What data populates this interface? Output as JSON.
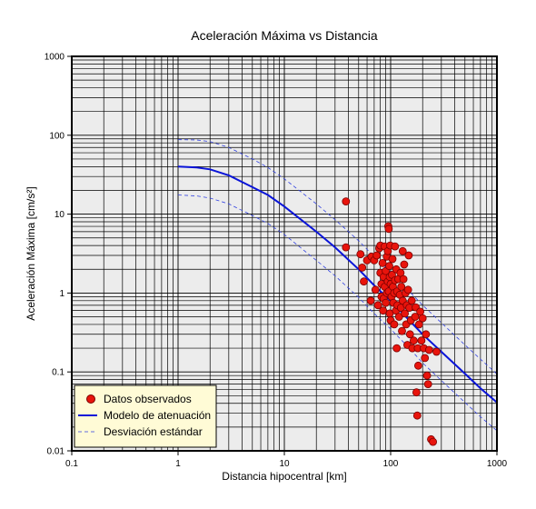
{
  "chart_data": {
    "type": "scatter",
    "title": "Aceleración Máxima vs Distancia",
    "xlabel": "Distancia hipocentral [km]",
    "ylabel": "Aceleración Máxima [cm/s²]",
    "xscale": "log",
    "yscale": "log",
    "xlim": [
      0.1,
      1000
    ],
    "ylim": [
      0.01,
      1000
    ],
    "x_tick_labels": [
      "0.1",
      "1",
      "10",
      "100",
      "1000"
    ],
    "y_tick_labels": [
      "0.01",
      "0.1",
      "1",
      "10",
      "100",
      "1000"
    ],
    "grid": true,
    "legend_position": "bottom-left",
    "colors": {
      "plot_background": "#ececec",
      "grid": "#000000",
      "observed_fill": "#e8140c",
      "observed_edge": "#7a0000",
      "model": "#0a14d8",
      "deviation": "#3040e0",
      "legend_background": "#fffbd6"
    },
    "series": [
      {
        "name": "Datos observados",
        "kind": "scatter",
        "points": [
          [
            38,
            14.5
          ],
          [
            38,
            3.8
          ],
          [
            52,
            3.1
          ],
          [
            54,
            2.1
          ],
          [
            56,
            1.4
          ],
          [
            60,
            2.6
          ],
          [
            65,
            0.8
          ],
          [
            66,
            2.9
          ],
          [
            70,
            2.6
          ],
          [
            72,
            1.1
          ],
          [
            74,
            3.0
          ],
          [
            76,
            0.7
          ],
          [
            78,
            3.7
          ],
          [
            80,
            4.0
          ],
          [
            80,
            1.8
          ],
          [
            82,
            1.3
          ],
          [
            82,
            0.9
          ],
          [
            84,
            2.4
          ],
          [
            85,
            0.6
          ],
          [
            86,
            1.6
          ],
          [
            86,
            0.85
          ],
          [
            88,
            3.9
          ],
          [
            88,
            1.2
          ],
          [
            90,
            1.9
          ],
          [
            90,
            0.75
          ],
          [
            92,
            1.0
          ],
          [
            92,
            2.9
          ],
          [
            94,
            3.4
          ],
          [
            94,
            1.4
          ],
          [
            95,
            7.0
          ],
          [
            96,
            6.5
          ],
          [
            96,
            1.05
          ],
          [
            97,
            2.2
          ],
          [
            98,
            0.55
          ],
          [
            98,
            1.6
          ],
          [
            99,
            4.0
          ],
          [
            100,
            1.3
          ],
          [
            100,
            0.45
          ],
          [
            102,
            0.9
          ],
          [
            103,
            1.7
          ],
          [
            104,
            2.7
          ],
          [
            105,
            1.2
          ],
          [
            106,
            0.75
          ],
          [
            108,
            0.4
          ],
          [
            108,
            1.0
          ],
          [
            110,
            3.9
          ],
          [
            110,
            1.45
          ],
          [
            112,
            0.6
          ],
          [
            113,
            2.0
          ],
          [
            114,
            0.2
          ],
          [
            115,
            1.05
          ],
          [
            116,
            0.7
          ],
          [
            118,
            1.5
          ],
          [
            120,
            0.5
          ],
          [
            122,
            0.95
          ],
          [
            124,
            1.8
          ],
          [
            125,
            0.65
          ],
          [
            126,
            1.2
          ],
          [
            128,
            0.33
          ],
          [
            130,
            0.8
          ],
          [
            130,
            3.4
          ],
          [
            132,
            1.5
          ],
          [
            134,
            2.3
          ],
          [
            136,
            0.55
          ],
          [
            138,
            1.0
          ],
          [
            140,
            0.4
          ],
          [
            142,
            0.7
          ],
          [
            144,
            0.22
          ],
          [
            146,
            1.1
          ],
          [
            148,
            3.0
          ],
          [
            150,
            0.65
          ],
          [
            152,
            0.3
          ],
          [
            155,
            0.45
          ],
          [
            158,
            0.8
          ],
          [
            160,
            0.2
          ],
          [
            165,
            0.25
          ],
          [
            170,
            0.5
          ],
          [
            172,
            0.66
          ],
          [
            175,
            0.055
          ],
          [
            178,
            0.028
          ],
          [
            180,
            0.2
          ],
          [
            182,
            0.12
          ],
          [
            185,
            0.4
          ],
          [
            190,
            0.58
          ],
          [
            195,
            0.25
          ],
          [
            200,
            0.48
          ],
          [
            205,
            0.2
          ],
          [
            210,
            0.15
          ],
          [
            215,
            0.3
          ],
          [
            220,
            0.09
          ],
          [
            225,
            0.07
          ],
          [
            230,
            0.19
          ],
          [
            240,
            0.014
          ],
          [
            250,
            0.013
          ],
          [
            270,
            0.18
          ]
        ]
      },
      {
        "name": "Modelo de atenuación",
        "kind": "line",
        "points": [
          [
            1,
            40
          ],
          [
            1.5,
            39
          ],
          [
            2,
            37
          ],
          [
            3,
            31
          ],
          [
            5,
            22
          ],
          [
            7,
            17.5
          ],
          [
            10,
            12.5
          ],
          [
            20,
            6.0
          ],
          [
            30,
            3.8
          ],
          [
            50,
            2.0
          ],
          [
            70,
            1.25
          ],
          [
            100,
            0.8
          ],
          [
            150,
            0.45
          ],
          [
            200,
            0.3
          ],
          [
            300,
            0.18
          ],
          [
            500,
            0.095
          ],
          [
            700,
            0.062
          ],
          [
            1000,
            0.041
          ]
        ]
      },
      {
        "name": "Desviación estándar",
        "kind": "dashed",
        "points_upper": [
          [
            1,
            88
          ],
          [
            1.5,
            87
          ],
          [
            2,
            83
          ],
          [
            3,
            70
          ],
          [
            5,
            50
          ],
          [
            7,
            39
          ],
          [
            10,
            28
          ],
          [
            20,
            13.5
          ],
          [
            30,
            8.5
          ],
          [
            50,
            4.6
          ],
          [
            70,
            2.9
          ],
          [
            100,
            1.85
          ],
          [
            150,
            1.05
          ],
          [
            200,
            0.7
          ],
          [
            300,
            0.42
          ],
          [
            500,
            0.22
          ],
          [
            700,
            0.145
          ],
          [
            1000,
            0.094
          ]
        ],
        "points_lower": [
          [
            1,
            17.5
          ],
          [
            1.5,
            17
          ],
          [
            2,
            16
          ],
          [
            3,
            13.5
          ],
          [
            5,
            9.6
          ],
          [
            7,
            7.6
          ],
          [
            10,
            5.5
          ],
          [
            20,
            2.6
          ],
          [
            30,
            1.65
          ],
          [
            50,
            0.88
          ],
          [
            70,
            0.55
          ],
          [
            100,
            0.35
          ],
          [
            150,
            0.2
          ],
          [
            200,
            0.13
          ],
          [
            300,
            0.078
          ],
          [
            500,
            0.041
          ],
          [
            700,
            0.027
          ],
          [
            1000,
            0.018
          ]
        ]
      }
    ]
  }
}
